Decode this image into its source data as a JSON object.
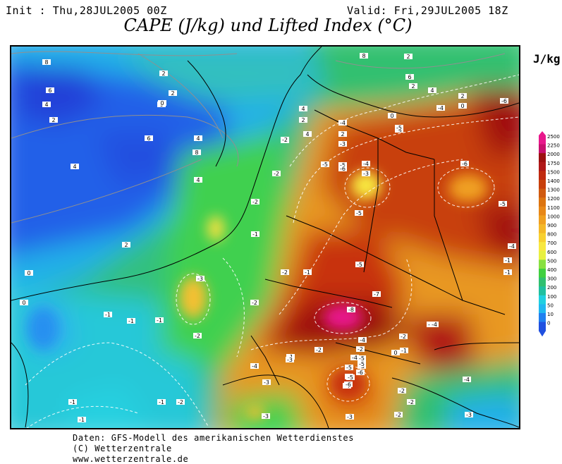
{
  "header": {
    "init": "Init : Thu,28JUL2005 00Z",
    "valid": "Valid: Fri,29JUL2005 18Z",
    "title": "CAPE (J/kg) und Lifted Index (°C)"
  },
  "legend": {
    "unit": "J/kg",
    "levels": [
      "2500",
      "2250",
      "2000",
      "1750",
      "1500",
      "1400",
      "1300",
      "1200",
      "1100",
      "1000",
      "900",
      "800",
      "700",
      "600",
      "500",
      "400",
      "300",
      "200",
      "100",
      "50",
      "10",
      "0"
    ],
    "colors": [
      "#e8188c",
      "#c8106e",
      "#9c1010",
      "#b01818",
      "#c02a10",
      "#c8400c",
      "#d05a10",
      "#dc7410",
      "#e88818",
      "#f0a020",
      "#f4b828",
      "#f8d030",
      "#f8e840",
      "#e8f040",
      "#88e040",
      "#40d040",
      "#30c070",
      "#20c0a0",
      "#20d0e0",
      "#20b8f0",
      "#2080f0",
      "#2050e0"
    ]
  },
  "map": {
    "lifted_index_labels": [
      "8",
      "2",
      "6",
      "4",
      "2",
      "0",
      "8",
      "2",
      "2",
      "6",
      "4",
      "-2",
      "0",
      "4",
      "2",
      "8",
      "4",
      "4",
      "2",
      "4",
      "2",
      "6",
      "2",
      "4",
      "2",
      "0",
      "0",
      "0",
      "-2",
      "-2",
      "-2",
      "-1",
      "-1",
      "-2",
      "-3",
      "-3",
      "0",
      "-1",
      "-1",
      "-1",
      "-2",
      "-2",
      "-1",
      "-1",
      "-1",
      "-2",
      "-1",
      "-3",
      "-2",
      "-4",
      "-3",
      "-5",
      "-6",
      "-3",
      "-4",
      "-5",
      "-5",
      "-4",
      "-4",
      "-6",
      "-5",
      "-6",
      "-4",
      "-5",
      "-8",
      "-4",
      "-5",
      "-4",
      "-4",
      "-4",
      "-2",
      "-3",
      "-1",
      "-4",
      "-5",
      "-7",
      "-8",
      "-3",
      "-2",
      "-2",
      "-1",
      "-2",
      "-3",
      "-4",
      "-5",
      "-6",
      "-4",
      "-5",
      "-5",
      "-6",
      "-3",
      "-2",
      "-3",
      "-2",
      "-1",
      "-1",
      "0",
      "-4"
    ]
  },
  "footer": {
    "line1": "Daten: GFS-Modell des amerikanischen Wetterdienstes",
    "line2": "(C) Wetterzentrale",
    "line3": "www.wetterzentrale.de"
  }
}
